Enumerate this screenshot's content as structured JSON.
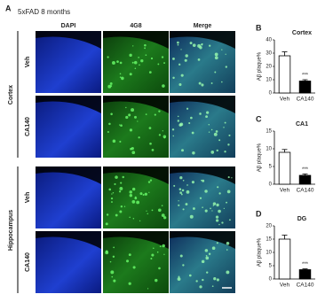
{
  "figure": {
    "label": "A",
    "subtitle": "5xFAD 8 months",
    "columns": [
      "DAPI",
      "4G8",
      "Merge"
    ],
    "groups": [
      {
        "name": "Cortex",
        "rows": [
          "Veh",
          "CA140"
        ]
      },
      {
        "name": "Hippocampus",
        "rows": [
          "Veh",
          "CA140"
        ]
      }
    ]
  },
  "chart_data": [
    {
      "type": "bar",
      "label": "B",
      "title": "Cortex",
      "ylabel": "Aβ plaque%",
      "categories": [
        "Veh",
        "CA140"
      ],
      "values": [
        28,
        9
      ],
      "errors": [
        3,
        1
      ],
      "colors": [
        "#ffffff",
        "#000000"
      ],
      "annotations": [
        null,
        "***"
      ],
      "ylim": [
        0,
        40
      ],
      "yticks": [
        0,
        10,
        20,
        30,
        40
      ]
    },
    {
      "type": "bar",
      "label": "C",
      "title": "CA1",
      "ylabel": "Aβ plaque%",
      "categories": [
        "Veh",
        "CA140"
      ],
      "values": [
        9,
        2.5
      ],
      "errors": [
        0.8,
        0.4
      ],
      "colors": [
        "#ffffff",
        "#000000"
      ],
      "annotations": [
        null,
        "***"
      ],
      "ylim": [
        0,
        15
      ],
      "yticks": [
        0,
        5,
        10,
        15
      ]
    },
    {
      "type": "bar",
      "label": "D",
      "title": "DG",
      "ylabel": "Aβ plaque%",
      "categories": [
        "Veh",
        "CA140"
      ],
      "values": [
        15,
        3.5
      ],
      "errors": [
        1.5,
        0.3
      ],
      "colors": [
        "#ffffff",
        "#000000"
      ],
      "annotations": [
        null,
        "***"
      ],
      "ylim": [
        0,
        20
      ],
      "yticks": [
        0,
        5,
        10,
        15,
        20
      ]
    }
  ]
}
